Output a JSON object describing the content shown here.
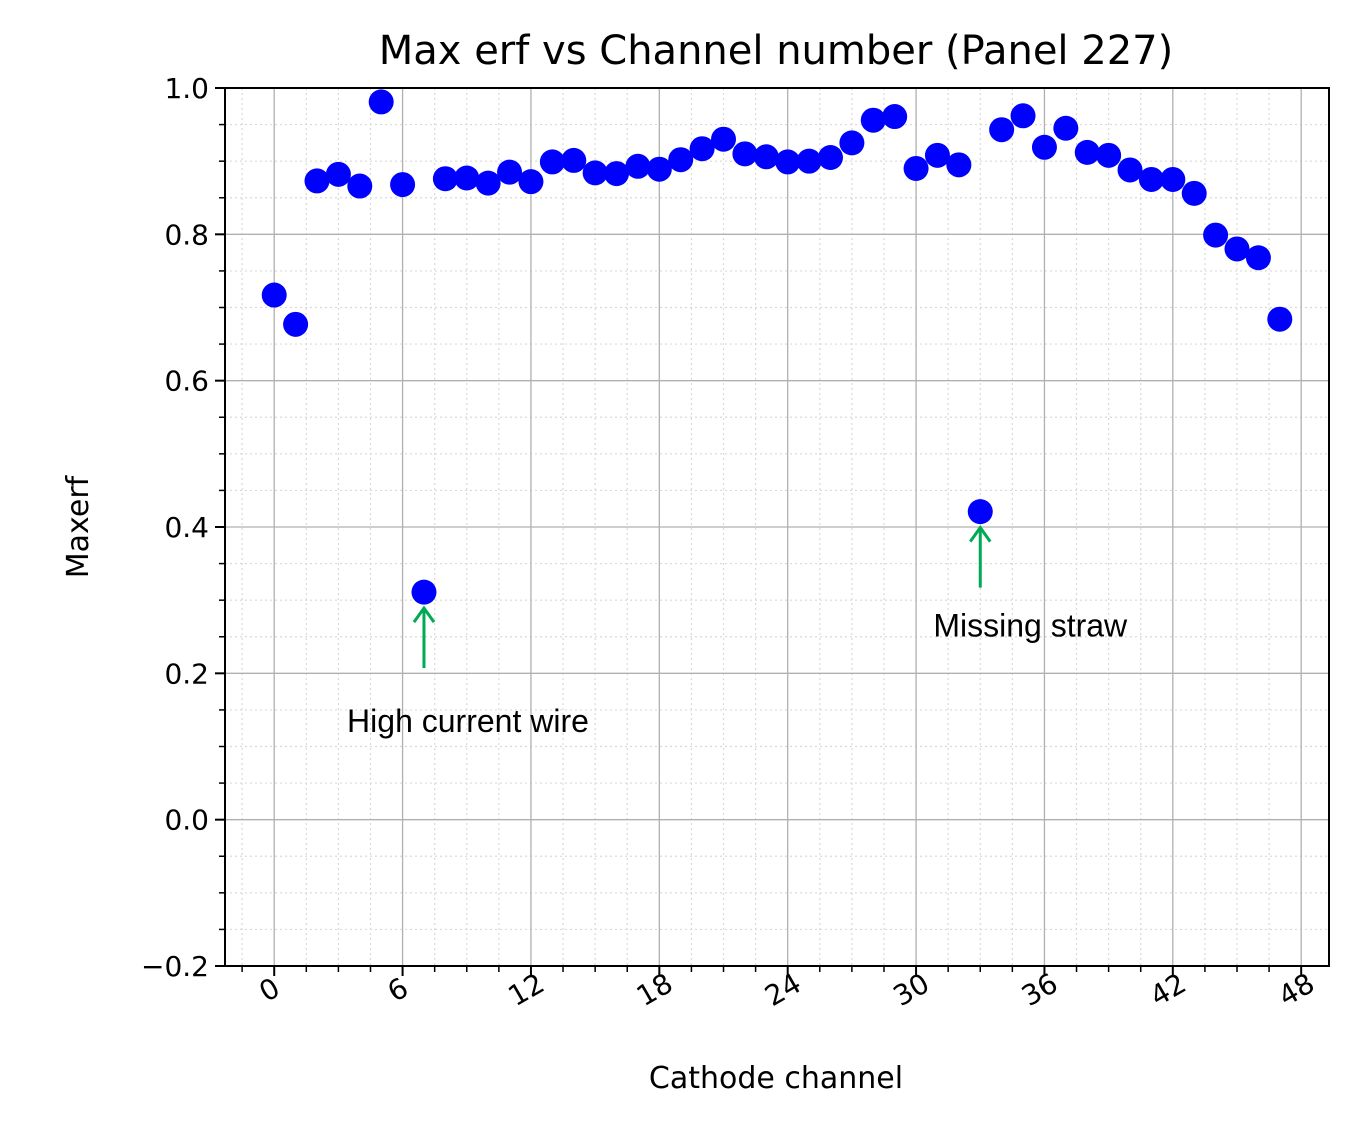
{
  "chart_data": {
    "type": "scatter",
    "title": "Max erf vs Channel number (Panel 227)",
    "xlabel": "Cathode channel",
    "ylabel": "Maxerf",
    "xlim": [
      -2.3,
      49.3
    ],
    "ylim": [
      -0.2,
      1.0
    ],
    "xticks": [
      0,
      6,
      12,
      18,
      24,
      30,
      36,
      42,
      48
    ],
    "xtick_labels": [
      "0",
      "6",
      "12",
      "18",
      "24",
      "30",
      "36",
      "42",
      "48"
    ],
    "yticks": [
      -0.2,
      0.0,
      0.2,
      0.4,
      0.6,
      0.8,
      1.0
    ],
    "ytick_labels": [
      "−0.2",
      "0.0",
      "0.2",
      "0.4",
      "0.6",
      "0.8",
      "1.0"
    ],
    "grid": true,
    "minor_grid": true,
    "marker_color": "#0000ff",
    "annotation_color": "#00aa55",
    "series": [
      {
        "name": "Maxerf",
        "x": [
          0,
          1,
          2,
          3,
          4,
          5,
          6,
          7,
          8,
          9,
          10,
          11,
          12,
          13,
          14,
          15,
          16,
          17,
          18,
          19,
          20,
          21,
          22,
          23,
          24,
          25,
          26,
          27,
          28,
          29,
          30,
          31,
          32,
          33,
          34,
          35,
          36,
          37,
          38,
          39,
          40,
          41,
          42,
          43,
          44,
          45,
          46,
          47
        ],
        "y": [
          0.717,
          0.677,
          0.873,
          0.882,
          0.866,
          0.981,
          0.868,
          0.311,
          0.876,
          0.877,
          0.87,
          0.885,
          0.872,
          0.899,
          0.901,
          0.884,
          0.883,
          0.893,
          0.889,
          0.902,
          0.917,
          0.93,
          0.91,
          0.906,
          0.899,
          0.9,
          0.905,
          0.925,
          0.956,
          0.961,
          0.89,
          0.908,
          0.895,
          0.421,
          0.943,
          0.962,
          0.919,
          0.945,
          0.912,
          0.908,
          0.888,
          0.875,
          0.875,
          0.856,
          0.799,
          0.78,
          0.768,
          0.684
        ]
      }
    ],
    "annotations": [
      {
        "text": "High current wire",
        "x": 7,
        "y": 0.311
      },
      {
        "text": "Missing straw",
        "x": 33,
        "y": 0.421
      }
    ]
  }
}
